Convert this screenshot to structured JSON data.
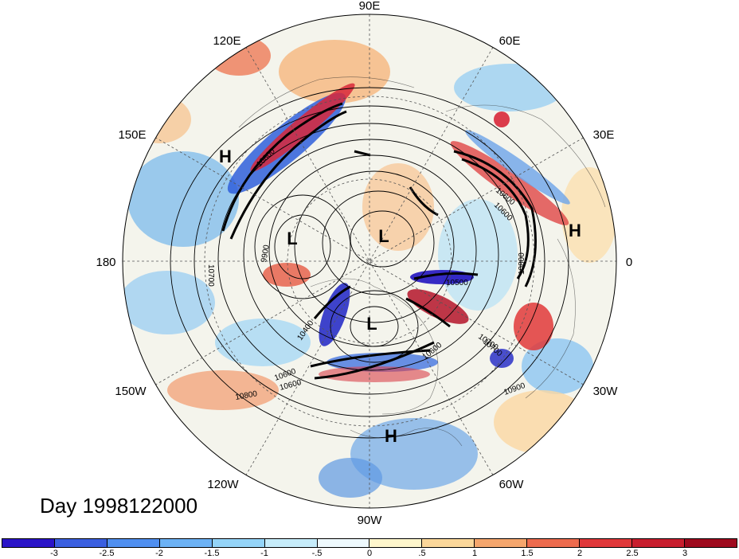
{
  "title": "Day 1998122000",
  "longitude_labels": [
    "90E",
    "60E",
    "30E",
    "0",
    "30W",
    "60W",
    "90W",
    "120W",
    "150W",
    "180",
    "150E",
    "120E"
  ],
  "pressure_centers": [
    {
      "id": "H-siberia",
      "label": "H"
    },
    {
      "id": "H-africa",
      "label": "H"
    },
    {
      "id": "H-gulf",
      "label": "H"
    },
    {
      "id": "L-arctic",
      "label": "L"
    },
    {
      "id": "L-pacific",
      "label": "L"
    },
    {
      "id": "L-canada",
      "label": "L"
    }
  ],
  "contour_labels": [
    "10800",
    "10600",
    "10700",
    "10800",
    "10500",
    "10600",
    "10700",
    "10900",
    "10600",
    "10400",
    "10600",
    "10800",
    "10700",
    "9900",
    "10600"
  ],
  "colorbar": {
    "labels": [
      "-3",
      "-2.5",
      "-2",
      "-1.5",
      "-1",
      "-.5",
      "0",
      ".5",
      "1",
      "1.5",
      "2",
      "2.5",
      "3"
    ],
    "colors": [
      "#2a14c8",
      "#3a5fe0",
      "#4f8ff0",
      "#6cb2f5",
      "#94d4f8",
      "#c6ecfa",
      "#eef9fd",
      "#fef6cc",
      "#fbd79a",
      "#f5a66d",
      "#ed6b4e",
      "#e0383a",
      "#c81e2e",
      "#9e0a1e"
    ]
  }
}
